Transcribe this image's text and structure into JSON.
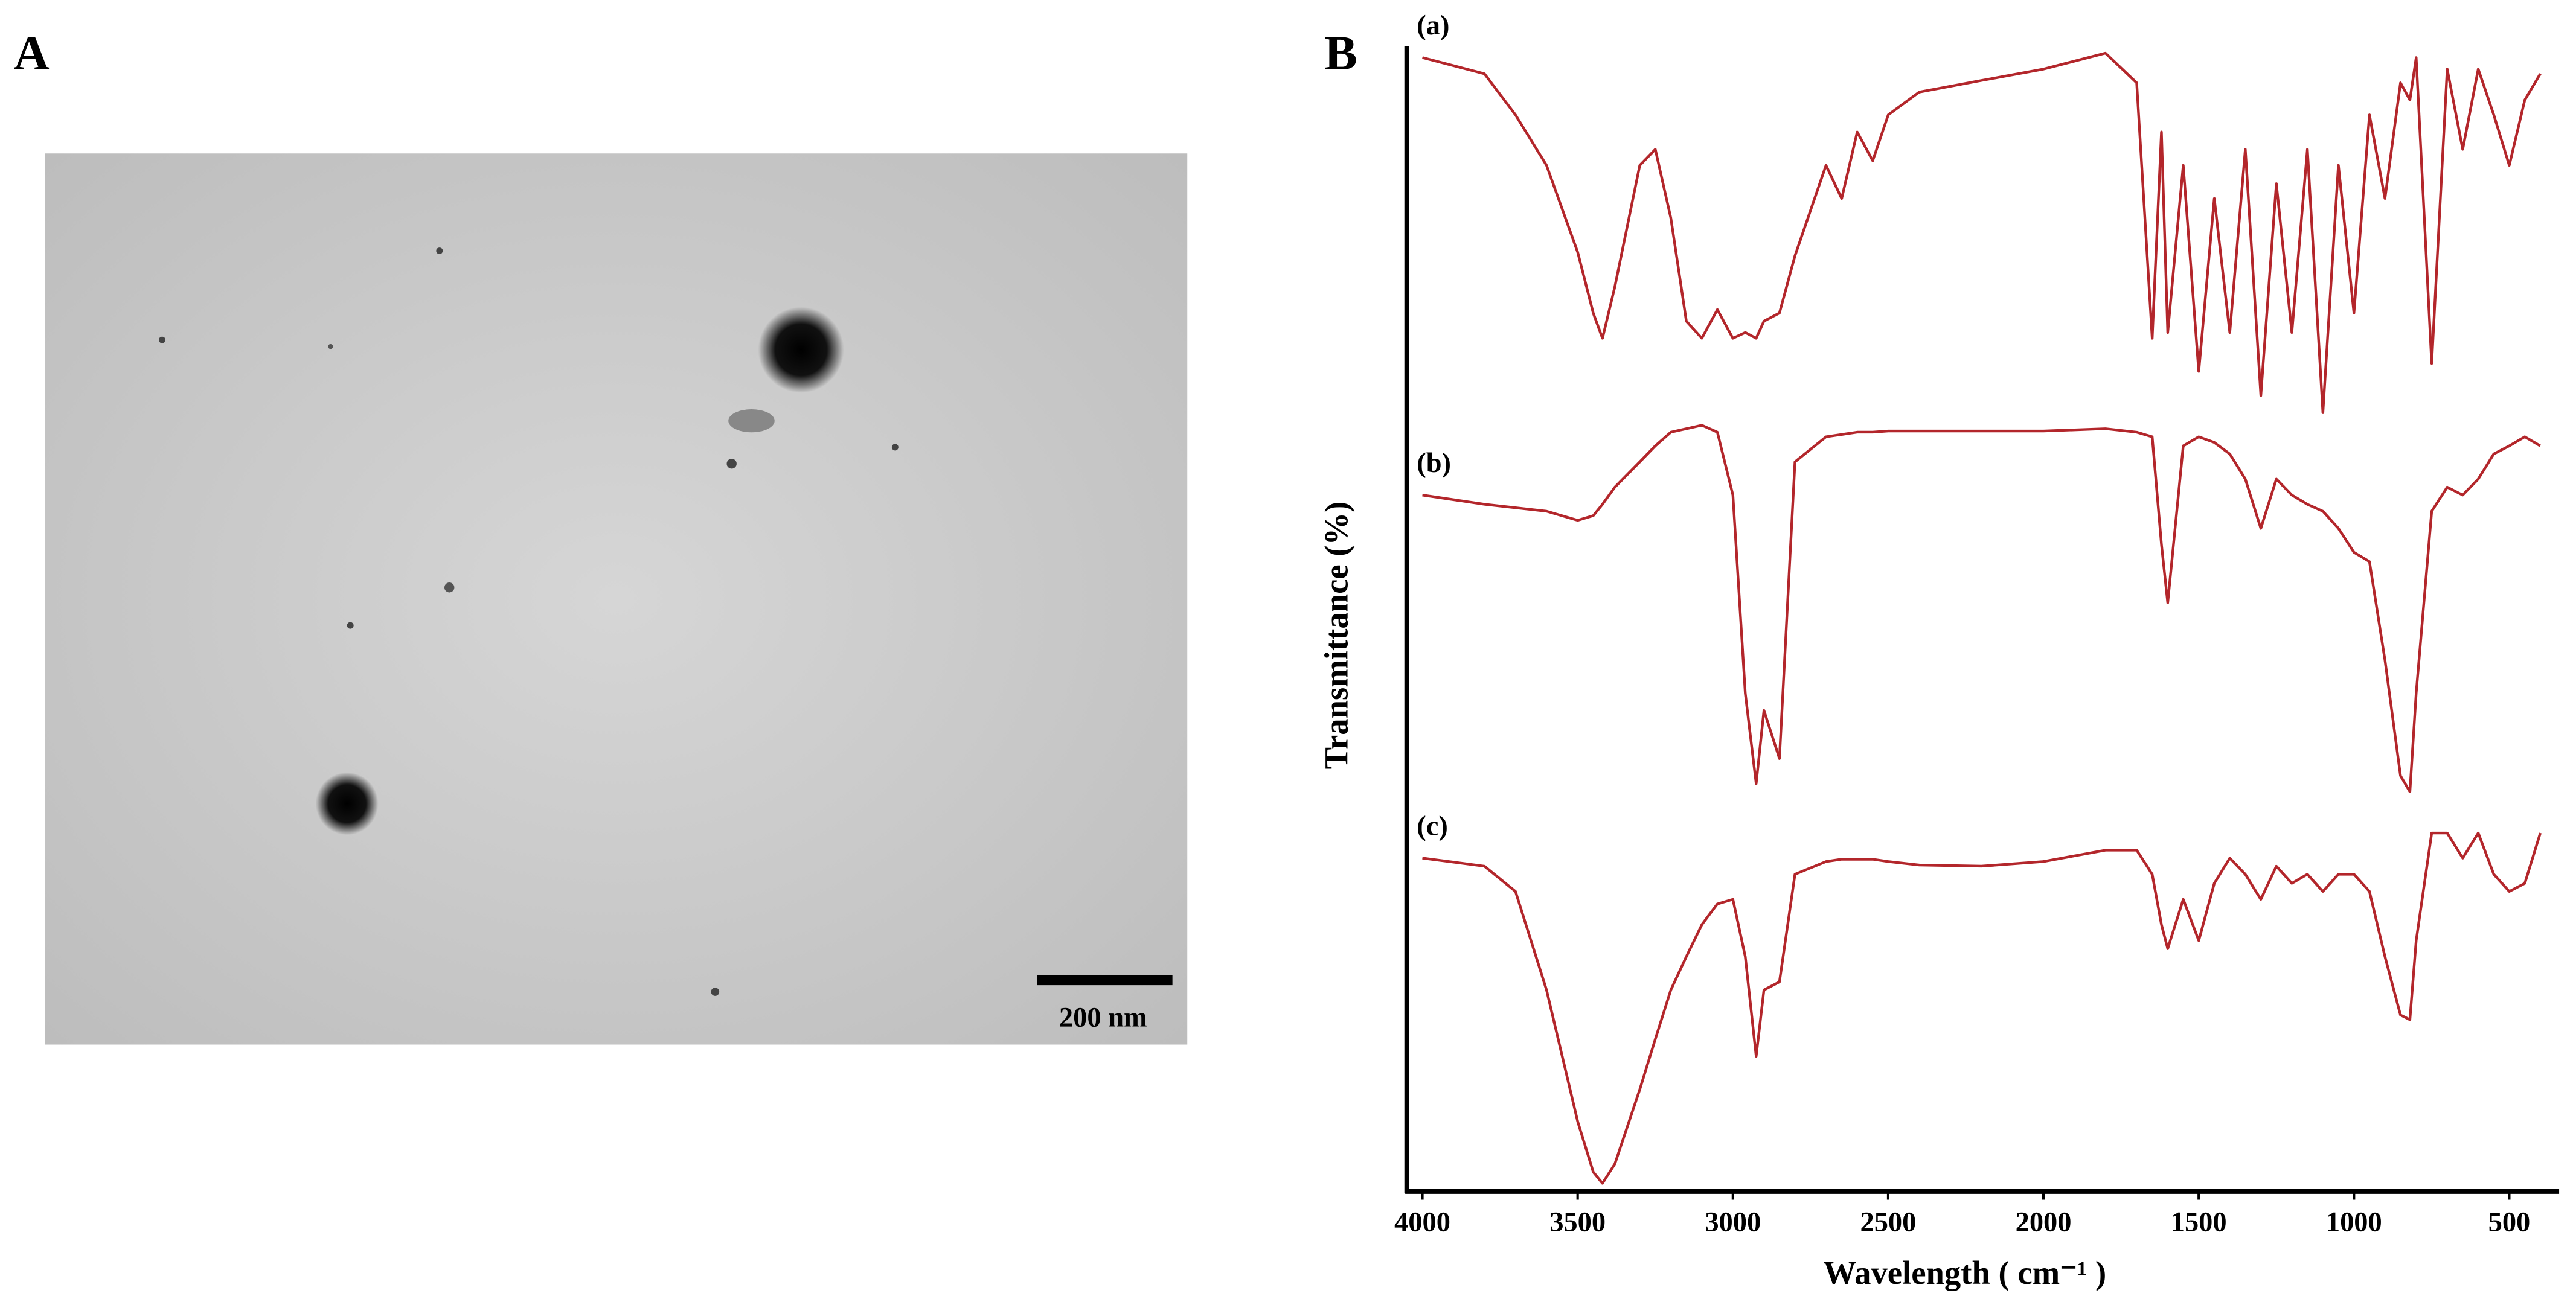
{
  "panel_a": {
    "label": "A",
    "scale_bar": "200 nm"
  },
  "chart_data": {
    "type": "line",
    "panel_label": "B",
    "xlabel": "Wavelength ( cm⁻¹ )",
    "ylabel": "Transmittance (%)",
    "x": [
      4000,
      3800,
      3700,
      3600,
      3500,
      3450,
      3420,
      3380,
      3300,
      3250,
      3200,
      3150,
      3100,
      3050,
      3000,
      2960,
      2925,
      2900,
      2850,
      2800,
      2700,
      2650,
      2600,
      2550,
      2500,
      2400,
      2200,
      2000,
      1800,
      1700,
      1650,
      1620,
      1600,
      1550,
      1500,
      1450,
      1400,
      1350,
      1300,
      1250,
      1200,
      1150,
      1100,
      1050,
      1000,
      950,
      900,
      850,
      820,
      800,
      750,
      700,
      650,
      600,
      550,
      500,
      450,
      400
    ],
    "xlim": [
      4050,
      350
    ],
    "xticks": [
      4000,
      3500,
      3000,
      2500,
      2000,
      1500,
      1000,
      500
    ],
    "ylim": [
      0,
      100
    ],
    "series": [
      {
        "name": "(a)",
        "color": "#b3262b",
        "values": [
          99,
          97.6,
          94,
          89.6,
          82,
          76.7,
          74.5,
          79,
          89.6,
          91,
          85,
          76,
          74.5,
          77,
          74.5,
          75,
          74.5,
          76,
          76.7,
          81.7,
          89.6,
          86.7,
          92.5,
          90,
          94,
          96,
          97,
          98,
          99.4,
          96.8,
          74.5,
          92.5,
          75,
          89.6,
          71.6,
          86.7,
          75,
          91,
          69.5,
          88,
          75,
          91,
          68,
          89.6,
          76.7,
          94,
          86.7,
          96.8,
          95.3,
          99,
          72.3,
          98,
          91,
          98,
          94,
          89.6,
          95.3,
          97.6
        ]
      },
      {
        "name": "(b)",
        "color": "#b3262b",
        "values": [
          60.8,
          60,
          59.7,
          59.4,
          58.6,
          59,
          60,
          61.5,
          63.7,
          65.1,
          66.3,
          66.6,
          66.9,
          66.3,
          60.8,
          43.5,
          35.6,
          42,
          37.8,
          63.7,
          65.9,
          66.1,
          66.3,
          66.3,
          66.4,
          66.4,
          66.4,
          66.4,
          66.6,
          66.3,
          65.9,
          56.5,
          51.4,
          65.1,
          65.9,
          65.4,
          64.4,
          62.2,
          57.9,
          62.2,
          60.8,
          60,
          59.4,
          57.9,
          55.8,
          55,
          46.4,
          36.3,
          34.9,
          43.5,
          59.4,
          61.5,
          60.8,
          62.2,
          64.4,
          65.1,
          65.9,
          65.1
        ]
      },
      {
        "name": "(c)",
        "color": "#b3262b",
        "values": [
          29.1,
          28.4,
          26.2,
          17.6,
          6.1,
          1.7,
          0.7,
          2.4,
          8.9,
          13.3,
          17.6,
          20.5,
          23.3,
          25.1,
          25.5,
          20.5,
          11.8,
          17.6,
          18.3,
          27.7,
          28.8,
          29,
          29,
          29,
          28.8,
          28.5,
          28.4,
          28.8,
          29.8,
          29.8,
          27.7,
          23.3,
          21.2,
          25.5,
          21.9,
          26.9,
          29.1,
          27.7,
          25.5,
          28.4,
          26.9,
          27.7,
          26.2,
          27.7,
          27.7,
          26.2,
          20.5,
          15.4,
          15,
          21.9,
          31.3,
          31.3,
          29.1,
          31.3,
          27.7,
          26.2,
          26.9,
          31.3
        ]
      }
    ]
  }
}
